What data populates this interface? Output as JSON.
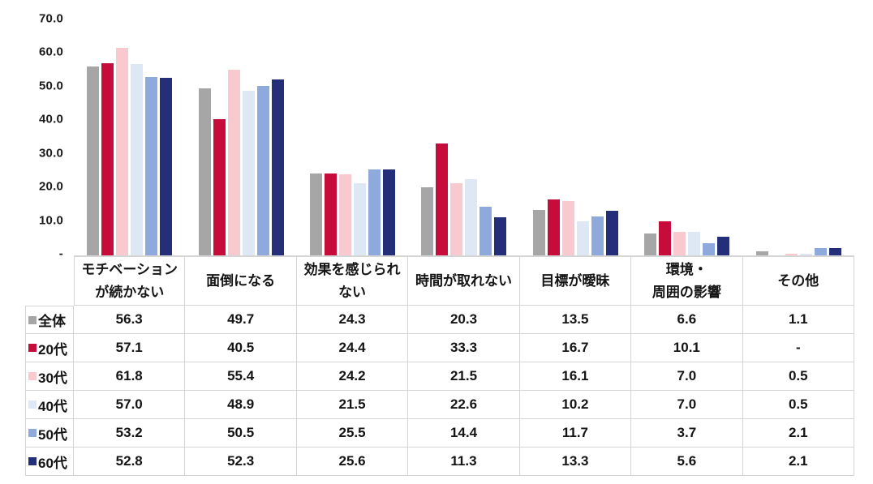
{
  "chart_data": {
    "type": "bar",
    "title": "",
    "xlabel": "",
    "ylabel": "",
    "ylim": [
      0,
      70
    ],
    "grid": false,
    "legend_position": "table-row-labels",
    "yticks": [
      {
        "label": "70.0",
        "value": 70
      },
      {
        "label": "60.0",
        "value": 60
      },
      {
        "label": "50.0",
        "value": 50
      },
      {
        "label": "40.0",
        "value": 40
      },
      {
        "label": "30.0",
        "value": 30
      },
      {
        "label": "20.0",
        "value": 20
      },
      {
        "label": "10.0",
        "value": 10
      },
      {
        "label": "-",
        "value": 0
      }
    ],
    "categories": [
      "モチベーションが続かない",
      "面倒になる",
      "効果を感じられない",
      "時間が取れない",
      "目標が曖昧",
      "環境・周囲の影響",
      "その他"
    ],
    "series": [
      {
        "name": "全体",
        "color": "#a6a6a6",
        "values": [
          56.3,
          49.7,
          24.3,
          20.3,
          13.5,
          6.6,
          1.1
        ]
      },
      {
        "name": "20代",
        "color": "#c50c3a",
        "values": [
          57.1,
          40.5,
          24.4,
          33.3,
          16.7,
          10.1,
          null
        ]
      },
      {
        "name": "30代",
        "color": "#f8cacf",
        "values": [
          61.8,
          55.4,
          24.2,
          21.5,
          16.1,
          7.0,
          0.5
        ]
      },
      {
        "name": "40代",
        "color": "#dee8f4",
        "values": [
          57.0,
          48.9,
          21.5,
          22.6,
          10.2,
          7.0,
          0.5
        ]
      },
      {
        "name": "50代",
        "color": "#8ea9db",
        "values": [
          53.2,
          50.5,
          25.5,
          14.4,
          11.7,
          3.7,
          2.1
        ]
      },
      {
        "name": "60代",
        "color": "#252e78",
        "values": [
          52.8,
          52.3,
          25.6,
          11.3,
          13.3,
          5.6,
          2.1
        ]
      }
    ]
  },
  "table": {
    "column_headers": [
      "モチベーション\nが続かない",
      "面倒になる",
      "効果を感じられ\nない",
      "時間が取れない",
      "目標が曖昧",
      "環境・\n周囲の影響",
      "その他"
    ],
    "rows": [
      {
        "label": "全体",
        "color": "#a6a6a6",
        "values": [
          "56.3",
          "49.7",
          "24.3",
          "20.3",
          "13.5",
          "6.6",
          "1.1"
        ]
      },
      {
        "label": "20代",
        "color": "#c50c3a",
        "values": [
          "57.1",
          "40.5",
          "24.4",
          "33.3",
          "16.7",
          "10.1",
          "-"
        ]
      },
      {
        "label": "30代",
        "color": "#f8cacf",
        "values": [
          "61.8",
          "55.4",
          "24.2",
          "21.5",
          "16.1",
          "7.0",
          "0.5"
        ]
      },
      {
        "label": "40代",
        "color": "#dee8f4",
        "values": [
          "57.0",
          "48.9",
          "21.5",
          "22.6",
          "10.2",
          "7.0",
          "0.5"
        ]
      },
      {
        "label": "50代",
        "color": "#8ea9db",
        "values": [
          "53.2",
          "50.5",
          "25.5",
          "14.4",
          "11.7",
          "3.7",
          "2.1"
        ]
      },
      {
        "label": "60代",
        "color": "#252e78",
        "values": [
          "52.8",
          "52.3",
          "25.6",
          "11.3",
          "13.3",
          "5.6",
          "2.1"
        ]
      }
    ]
  }
}
